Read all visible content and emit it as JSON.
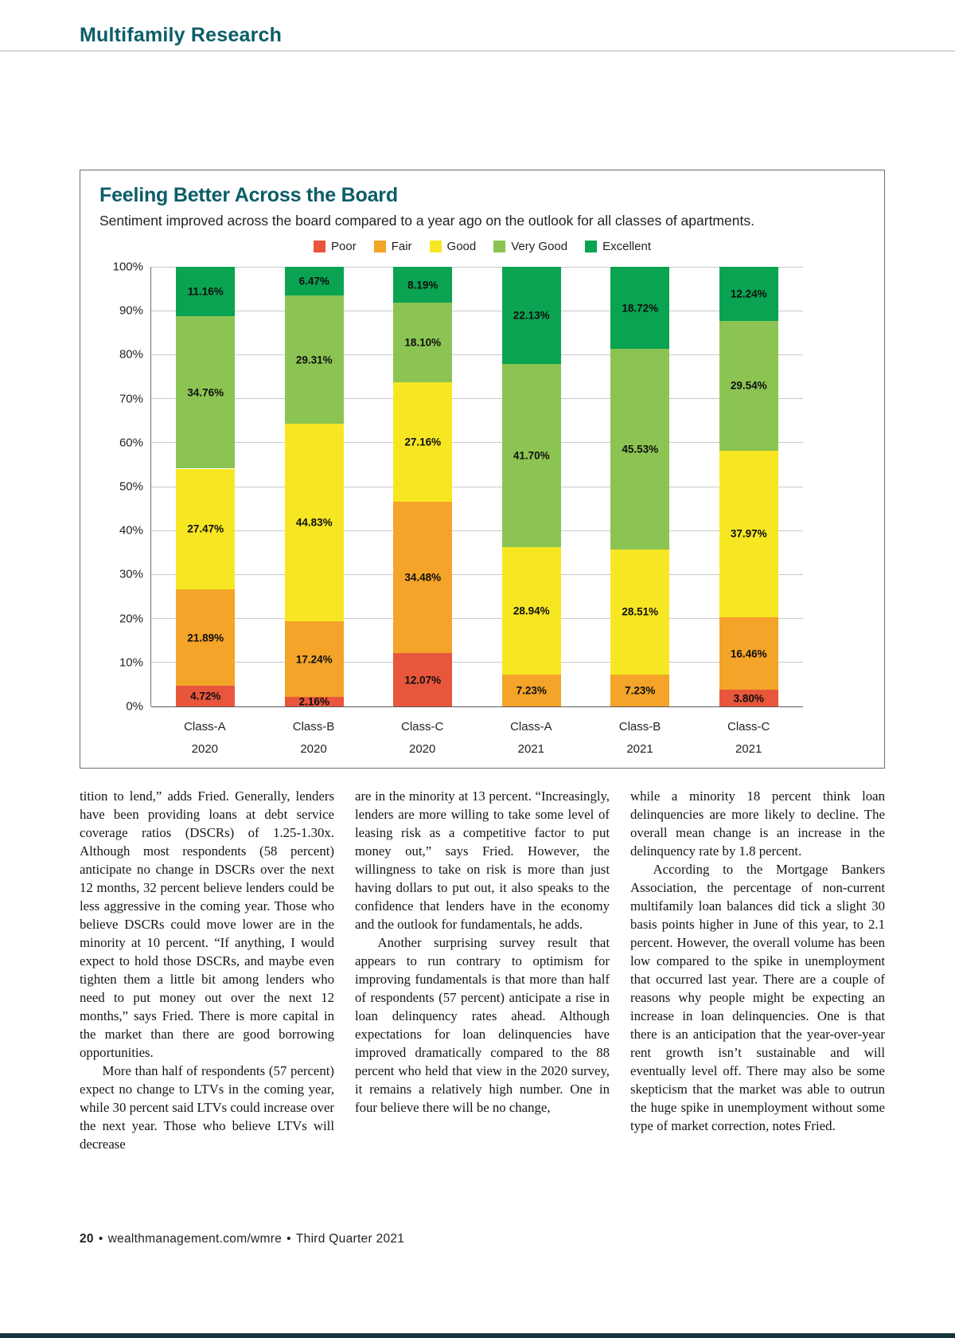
{
  "theme": {
    "accent_teal": "#0b5d68",
    "grid_gray": "#c9c9c9",
    "axis_gray": "#6d6e71"
  },
  "page": {
    "section_header": "Multifamily Research",
    "footer": {
      "page_number": "20",
      "separator": "•",
      "site": "wealthmanagement.com/wmre",
      "issue": "Third Quarter 2021"
    }
  },
  "chart": {
    "title": "Feeling Better Across the Board",
    "subtitle": "Sentiment improved across the board compared to a year ago on the outlook for all classes of apartments."
  },
  "chart_data": {
    "type": "bar",
    "stacked": true,
    "title": "Feeling Better Across the Board",
    "categories": [
      [
        "Class-A",
        "2020"
      ],
      [
        "Class-B",
        "2020"
      ],
      [
        "Class-C",
        "2020"
      ],
      [
        "Class-A",
        "2021"
      ],
      [
        "Class-B",
        "2021"
      ],
      [
        "Class-C",
        "2021"
      ]
    ],
    "series": [
      {
        "name": "Poor",
        "color": "#e8563c",
        "values": [
          4.72,
          2.16,
          12.07,
          0,
          0,
          3.8
        ]
      },
      {
        "name": "Fair",
        "color": "#f4a429",
        "values": [
          21.89,
          17.24,
          34.48,
          7.23,
          7.23,
          16.46
        ]
      },
      {
        "name": "Good",
        "color": "#f7e723",
        "values": [
          27.47,
          44.83,
          27.16,
          28.94,
          28.51,
          37.97
        ]
      },
      {
        "name": "Very Good",
        "color": "#8cc453",
        "values": [
          34.76,
          29.31,
          18.1,
          41.7,
          45.53,
          29.54
        ]
      },
      {
        "name": "Excellent",
        "color": "#0aa351",
        "values": [
          11.16,
          6.47,
          8.19,
          22.13,
          18.72,
          12.24
        ]
      }
    ],
    "y_ticks": [
      "100%",
      "90%",
      "80%",
      "70%",
      "60%",
      "50%",
      "40%",
      "30%",
      "20%",
      "10%",
      "0%"
    ],
    "ylim": [
      0,
      100
    ],
    "grid": true,
    "legend_position": "top",
    "value_label_format": "0.00%"
  },
  "article": {
    "columns": [
      {
        "paragraphs": [
          "tition to lend,” adds Fried. Generally, lenders have been providing loans at debt service coverage ratios (DSCRs) of 1.25-1.30x. Although most respondents (58 percent) anticipate no change in DSCRs over the next 12 months, 32 percent believe lenders could be less aggressive in the coming year. Those who believe DSCRs could move lower are in the minority at 10 percent. “If anything, I would expect to hold those DSCRs, and maybe even tighten them a little bit among lenders who need to put money out over the next 12 months,” says Fried. There is more capital in the market than there are good borrowing opportunities.",
          "More than half of respondents (57 percent) expect no change to LTVs in the coming year, while 30 percent said LTVs could increase over the next year. Those who believe LTVs will decrease"
        ]
      },
      {
        "paragraphs": [
          "are in the minority at 13 percent. “Increasingly, lenders are more willing to take some level of leasing risk as a competitive factor to put money out,” says Fried. However, the willingness to take on risk is more than just having dollars to put out, it also speaks to the confidence that lenders have in the economy and the outlook for fundamentals, he adds.",
          "Another surprising survey result that appears to run contrary to optimism for improving fundamentals is that more than half of respondents (57 percent) anticipate a rise in loan delinquency rates ahead. Although expectations for loan delinquencies have improved dramatically compared to the 88 percent who held that view in the 2020 survey, it remains a relatively high number. One in four believe there will be no change,"
        ]
      },
      {
        "paragraphs": [
          "while a minority 18 percent think loan delinquencies are more likely to decline. The overall mean change is an increase in the delinquency rate by 1.8 percent.",
          "According to the Mortgage Bankers Association, the percentage of non-current multifamily loan balances did tick a slight 30 basis points higher in June of this year, to 2.1 percent. However, the overall volume has been low compared to the spike in unemployment that occurred last year. There are a couple of reasons why people might be expecting an increase in loan delinquencies. One is that there is an anticipation that the year-over-year rent growth isn’t sustainable and will eventually level off. There may also be some skepticism that the market was able to outrun the huge spike in unemployment without some type of market correction, notes Fried."
        ]
      }
    ]
  }
}
